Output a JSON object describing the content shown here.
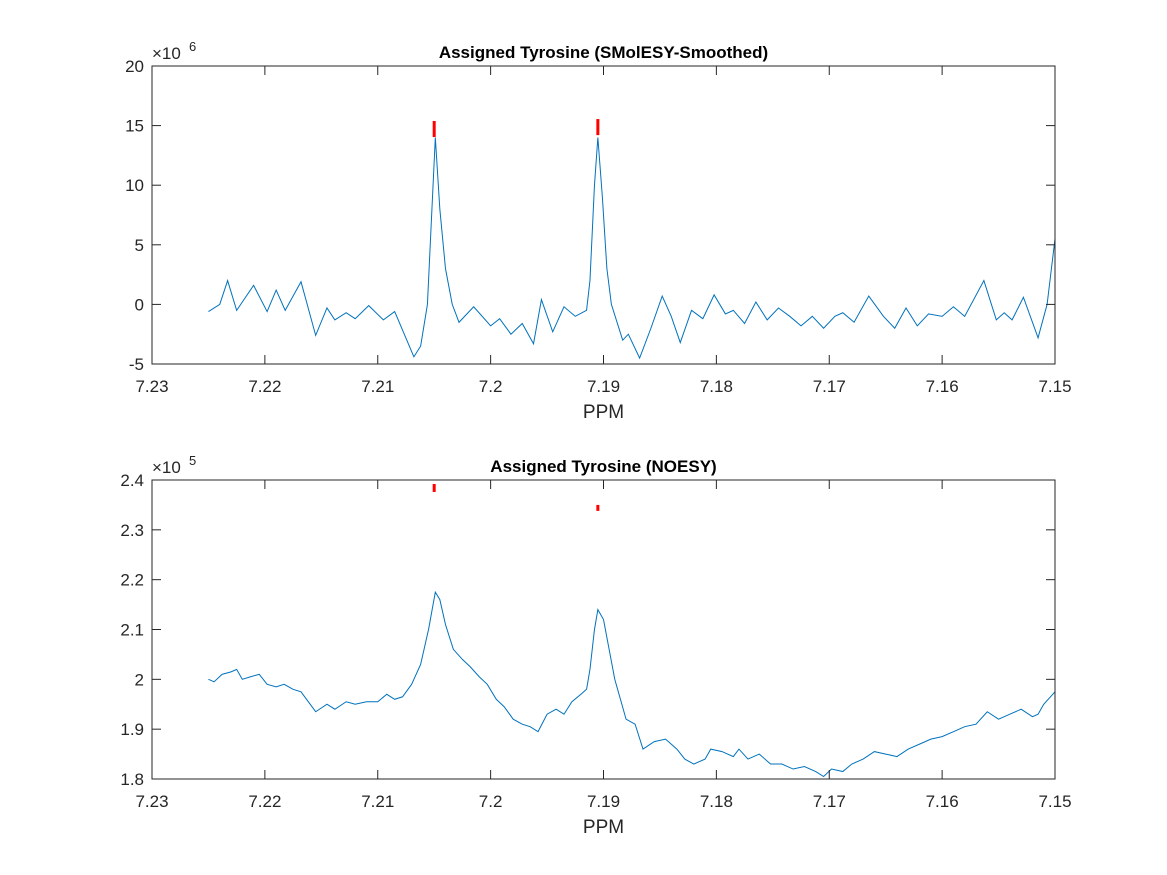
{
  "chart_data": [
    {
      "type": "line",
      "title": "Assigned Tyrosine (SMolESY-Smoothed)",
      "xlabel": "PPM",
      "y_exponent": {
        "base": "×10",
        "power": "6"
      },
      "xlim": [
        7.23,
        7.15
      ],
      "xticks": [
        7.23,
        7.22,
        7.21,
        7.2,
        7.19,
        7.18,
        7.17,
        7.16,
        7.15
      ],
      "ylim": [
        -5,
        20
      ],
      "yticks": [
        -5,
        0,
        5,
        10,
        15,
        20
      ],
      "grid": false,
      "color": "#0072bd",
      "x": [
        7.225,
        7.224,
        7.2233,
        7.2225,
        7.221,
        7.2198,
        7.219,
        7.2182,
        7.2168,
        7.2155,
        7.2145,
        7.2138,
        7.2128,
        7.212,
        7.2108,
        7.2095,
        7.2085,
        7.2068,
        7.2062,
        7.2056,
        7.2053,
        7.2049,
        7.2045,
        7.204,
        7.2034,
        7.2028,
        7.2015,
        7.2,
        7.1992,
        7.1982,
        7.1972,
        7.1962,
        7.1955,
        7.1945,
        7.1935,
        7.1925,
        7.1915,
        7.1912,
        7.1908,
        7.1905,
        7.1901,
        7.1897,
        7.1893,
        7.1883,
        7.1878,
        7.1868,
        7.1858,
        7.1848,
        7.184,
        7.1832,
        7.1822,
        7.1812,
        7.1802,
        7.1792,
        7.1785,
        7.1775,
        7.1765,
        7.1755,
        7.1745,
        7.1735,
        7.1725,
        7.1715,
        7.1705,
        7.1695,
        7.1688,
        7.1678,
        7.1665,
        7.1652,
        7.1642,
        7.1632,
        7.1622,
        7.1612,
        7.16,
        7.159,
        7.158,
        7.1563,
        7.1552,
        7.1545,
        7.1538,
        7.1528,
        7.1515,
        7.1507,
        7.15
      ],
      "values": [
        -0.6,
        0.0,
        2.0,
        -0.5,
        1.6,
        -0.6,
        1.2,
        -0.5,
        1.9,
        -2.6,
        -0.3,
        -1.3,
        -0.7,
        -1.2,
        -0.1,
        -1.3,
        -0.6,
        -4.4,
        -3.5,
        0,
        6,
        14,
        8,
        3,
        0,
        -1.5,
        -0.2,
        -1.8,
        -1.2,
        -2.5,
        -1.6,
        -3.3,
        0.4,
        -2.3,
        -0.2,
        -1,
        -0.5,
        2,
        10,
        14,
        9,
        3,
        0,
        -3,
        -2.5,
        -4.5,
        -2,
        0.7,
        -1,
        -3.2,
        -0.5,
        -1.2,
        0.8,
        -0.8,
        -0.5,
        -1.6,
        0.2,
        -1.3,
        -0.3,
        -1,
        -1.8,
        -1,
        -2,
        -1,
        -0.7,
        -1.5,
        0.7,
        -1,
        -2,
        -0.3,
        -1.8,
        -0.8,
        -1,
        -0.2,
        -1,
        2,
        -1.3,
        -0.7,
        -1.3,
        0.6,
        -2.8,
        0,
        5.5
      ],
      "peak_markers": {
        "color": "#ff0000",
        "x": [
          7.205,
          7.1905
        ],
        "y_bottom": [
          14.04,
          14.2
        ],
        "y_top": [
          15.39,
          15.55
        ]
      }
    },
    {
      "type": "line",
      "title": "Assigned Tyrosine (NOESY)",
      "xlabel": "PPM",
      "y_exponent": {
        "base": "×10",
        "power": "5"
      },
      "xlim": [
        7.23,
        7.15
      ],
      "xticks": [
        7.23,
        7.22,
        7.21,
        7.2,
        7.19,
        7.18,
        7.17,
        7.16,
        7.15
      ],
      "ylim": [
        1.8,
        2.4
      ],
      "yticks": [
        1.8,
        1.9,
        2,
        2.1,
        2.2,
        2.3,
        2.4
      ],
      "grid": false,
      "color": "#0072bd",
      "x": [
        7.225,
        7.2245,
        7.2238,
        7.223,
        7.2225,
        7.222,
        7.2213,
        7.2205,
        7.2198,
        7.219,
        7.2183,
        7.2175,
        7.2168,
        7.2155,
        7.2145,
        7.2138,
        7.2128,
        7.212,
        7.211,
        7.21,
        7.2092,
        7.2085,
        7.2078,
        7.207,
        7.2062,
        7.2055,
        7.2049,
        7.2045,
        7.204,
        7.2033,
        7.2025,
        7.2018,
        7.201,
        7.2003,
        7.1995,
        7.1988,
        7.198,
        7.1972,
        7.1965,
        7.1958,
        7.195,
        7.1942,
        7.1935,
        7.1928,
        7.192,
        7.1915,
        7.1912,
        7.1908,
        7.1905,
        7.19,
        7.1895,
        7.189,
        7.1885,
        7.188,
        7.1872,
        7.1865,
        7.1855,
        7.1845,
        7.1835,
        7.1828,
        7.182,
        7.181,
        7.1805,
        7.1795,
        7.1785,
        7.178,
        7.1772,
        7.1762,
        7.1752,
        7.1742,
        7.1732,
        7.1722,
        7.1712,
        7.1705,
        7.1698,
        7.1688,
        7.168,
        7.167,
        7.166,
        7.165,
        7.164,
        7.163,
        7.162,
        7.161,
        7.16,
        7.159,
        7.158,
        7.157,
        7.156,
        7.155,
        7.154,
        7.153,
        7.152,
        7.1515,
        7.151,
        7.15
      ],
      "values": [
        2.0,
        1.995,
        2.01,
        2.015,
        2.02,
        2.0,
        2.005,
        2.01,
        1.99,
        1.985,
        1.99,
        1.98,
        1.975,
        1.935,
        1.95,
        1.94,
        1.955,
        1.95,
        1.955,
        1.955,
        1.97,
        1.96,
        1.965,
        1.99,
        2.03,
        2.1,
        2.175,
        2.16,
        2.11,
        2.06,
        2.04,
        2.025,
        2.005,
        1.99,
        1.96,
        1.945,
        1.92,
        1.91,
        1.905,
        1.895,
        1.93,
        1.94,
        1.93,
        1.955,
        1.97,
        1.98,
        2.02,
        2.1,
        2.14,
        2.12,
        2.06,
        2.0,
        1.96,
        1.92,
        1.91,
        1.86,
        1.875,
        1.88,
        1.86,
        1.84,
        1.83,
        1.84,
        1.86,
        1.855,
        1.845,
        1.86,
        1.84,
        1.85,
        1.83,
        1.83,
        1.82,
        1.825,
        1.815,
        1.805,
        1.82,
        1.815,
        1.83,
        1.84,
        1.855,
        1.85,
        1.845,
        1.86,
        1.87,
        1.88,
        1.885,
        1.895,
        1.905,
        1.91,
        1.935,
        1.92,
        1.93,
        1.94,
        1.925,
        1.93,
        1.95,
        1.975
      ],
      "peak_markers": {
        "color": "#ff0000",
        "x": [
          7.205,
          7.1905
        ],
        "y_bottom": [
          2.376,
          2.338
        ],
        "y_top": [
          2.392,
          2.35
        ]
      }
    }
  ]
}
